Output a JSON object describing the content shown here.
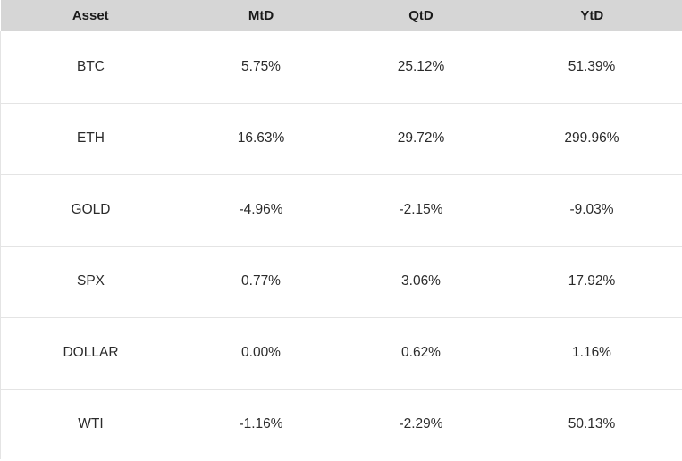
{
  "table": {
    "headers": [
      "Asset",
      "MtD",
      "QtD",
      "YtD"
    ],
    "rows": [
      [
        "BTC",
        "5.75%",
        "25.12%",
        "51.39%"
      ],
      [
        "ETH",
        "16.63%",
        "29.72%",
        "299.96%"
      ],
      [
        "GOLD",
        "-4.96%",
        "-2.15%",
        "-9.03%"
      ],
      [
        "SPX",
        "0.77%",
        "3.06%",
        "17.92%"
      ],
      [
        "DOLLAR",
        "0.00%",
        "0.62%",
        "1.16%"
      ],
      [
        "WTI",
        "-1.16%",
        "-2.29%",
        "50.13%"
      ]
    ]
  }
}
